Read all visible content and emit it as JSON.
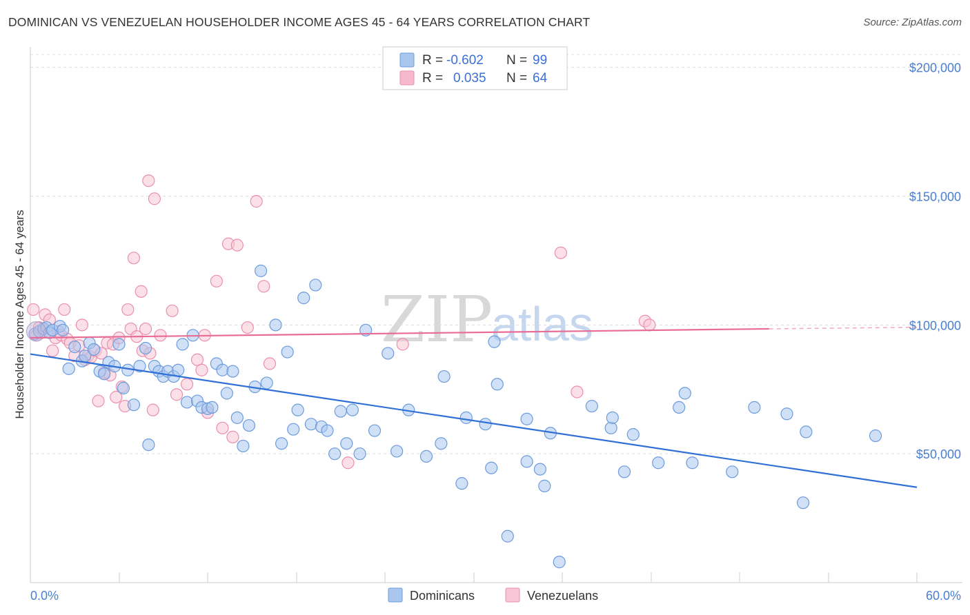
{
  "header": {
    "title": "DOMINICAN VS VENEZUELAN HOUSEHOLDER INCOME AGES 45 - 64 YEARS CORRELATION CHART",
    "source": "Source: ZipAtlas.com"
  },
  "watermark": {
    "zip": "ZIP",
    "atlas": "atlas"
  },
  "legend": {
    "r_label": "R =",
    "n_label": "N =",
    "entries": [
      {
        "r": "-0.602",
        "n": "99",
        "color": "#a9c6ee"
      },
      {
        "r": "0.035",
        "n": "64",
        "color": "#f5b8cc"
      }
    ]
  },
  "colors": {
    "dominican_fill": "#a9c6ee",
    "dominican_stroke": "#6c9bdc",
    "dominican_line": "#2f6fd6",
    "venezuelan_fill": "#f8c6d6",
    "venezuelan_stroke": "#ea8fae",
    "venezuelan_line": "#e86c95",
    "tick_label": "#4a7fd0"
  },
  "chart_data": {
    "type": "scatter",
    "title": "DOMINICAN VS VENEZUELAN HOUSEHOLDER INCOME AGES 45 - 64 YEARS CORRELATION CHART",
    "xlabel": "",
    "ylabel": "Householder Income Ages 45 - 64 years",
    "xlim": [
      0,
      60
    ],
    "ylim": [
      0,
      205000
    ],
    "x_tick_labels": [
      "0.0%",
      "60.0%"
    ],
    "y_ticks": [
      50000,
      100000,
      150000,
      200000
    ],
    "y_tick_labels": [
      "$50,000",
      "$100,000",
      "$150,000",
      "$200,000"
    ],
    "grid": true,
    "legend_position": "top-center",
    "series": [
      {
        "name": "Dominicans",
        "r": -0.602,
        "n": 99,
        "trend": {
          "x": [
            0,
            60
          ],
          "y": [
            88700,
            37000
          ]
        },
        "points": [
          [
            0.3,
            96500
          ],
          [
            0.6,
            97500
          ],
          [
            0.9,
            98500
          ],
          [
            1.1,
            99000
          ],
          [
            1.3,
            97000
          ],
          [
            1.5,
            98000
          ],
          [
            2.0,
            99500
          ],
          [
            2.2,
            98000
          ],
          [
            2.6,
            83000
          ],
          [
            3.0,
            91500
          ],
          [
            3.5,
            86000
          ],
          [
            3.7,
            88000
          ],
          [
            4.0,
            93000
          ],
          [
            4.3,
            90500
          ],
          [
            4.7,
            82000
          ],
          [
            5.0,
            81000
          ],
          [
            5.3,
            85500
          ],
          [
            5.7,
            84000
          ],
          [
            6.0,
            92500
          ],
          [
            6.3,
            75500
          ],
          [
            6.6,
            82500
          ],
          [
            7.0,
            69000
          ],
          [
            7.4,
            84000
          ],
          [
            7.8,
            91000
          ],
          [
            8.0,
            53500
          ],
          [
            8.4,
            84000
          ],
          [
            8.7,
            82000
          ],
          [
            9.0,
            80000
          ],
          [
            9.3,
            82000
          ],
          [
            9.7,
            80000
          ],
          [
            10.0,
            82500
          ],
          [
            10.3,
            92500
          ],
          [
            10.6,
            70000
          ],
          [
            11.0,
            96000
          ],
          [
            11.3,
            70500
          ],
          [
            11.6,
            68000
          ],
          [
            12.0,
            67500
          ],
          [
            12.3,
            68000
          ],
          [
            12.6,
            85000
          ],
          [
            13.0,
            82500
          ],
          [
            13.3,
            73500
          ],
          [
            13.7,
            82000
          ],
          [
            14.0,
            64000
          ],
          [
            14.4,
            53000
          ],
          [
            14.8,
            61000
          ],
          [
            15.2,
            76000
          ],
          [
            15.6,
            121000
          ],
          [
            16.0,
            77500
          ],
          [
            16.6,
            100000
          ],
          [
            17.0,
            54000
          ],
          [
            17.4,
            89500
          ],
          [
            17.8,
            59500
          ],
          [
            18.1,
            67000
          ],
          [
            18.5,
            110500
          ],
          [
            19.0,
            61500
          ],
          [
            19.3,
            115500
          ],
          [
            19.7,
            60500
          ],
          [
            20.1,
            59000
          ],
          [
            20.6,
            50000
          ],
          [
            21.0,
            66500
          ],
          [
            21.4,
            54000
          ],
          [
            21.8,
            67000
          ],
          [
            22.3,
            50000
          ],
          [
            22.7,
            98000
          ],
          [
            23.3,
            59000
          ],
          [
            24.2,
            89000
          ],
          [
            24.8,
            51000
          ],
          [
            25.6,
            67000
          ],
          [
            26.8,
            49000
          ],
          [
            27.8,
            54000
          ],
          [
            28.0,
            80000
          ],
          [
            29.2,
            38500
          ],
          [
            29.5,
            64000
          ],
          [
            30.8,
            61500
          ],
          [
            31.2,
            44500
          ],
          [
            31.4,
            93500
          ],
          [
            31.6,
            77000
          ],
          [
            32.3,
            18000
          ],
          [
            33.6,
            47000
          ],
          [
            33.6,
            63500
          ],
          [
            34.5,
            44000
          ],
          [
            34.8,
            37500
          ],
          [
            35.2,
            58000
          ],
          [
            35.8,
            8000
          ],
          [
            38.0,
            68500
          ],
          [
            39.3,
            60000
          ],
          [
            39.4,
            64000
          ],
          [
            40.2,
            43000
          ],
          [
            40.8,
            57500
          ],
          [
            42.5,
            46500
          ],
          [
            43.9,
            68000
          ],
          [
            44.3,
            73500
          ],
          [
            44.8,
            46500
          ],
          [
            47.5,
            43000
          ],
          [
            49.0,
            68000
          ],
          [
            51.2,
            65500
          ],
          [
            52.3,
            31000
          ],
          [
            52.5,
            58500
          ],
          [
            57.2,
            57000
          ]
        ]
      },
      {
        "name": "Venezuelans",
        "r": 0.035,
        "n": 64,
        "trend": {
          "x": [
            0,
            50
          ],
          "y": [
            95000,
            98500
          ]
        },
        "trend_dashed": {
          "x": [
            50,
            60
          ],
          "y": [
            98500,
            99100
          ]
        },
        "points": [
          [
            0.2,
            106000
          ],
          [
            0.4,
            96000
          ],
          [
            0.6,
            99000
          ],
          [
            0.9,
            97500
          ],
          [
            1.0,
            104000
          ],
          [
            1.3,
            102000
          ],
          [
            1.5,
            90000
          ],
          [
            1.7,
            95000
          ],
          [
            1.9,
            97500
          ],
          [
            2.1,
            96000
          ],
          [
            2.3,
            106000
          ],
          [
            2.5,
            94500
          ],
          [
            2.7,
            93000
          ],
          [
            3.0,
            88000
          ],
          [
            3.3,
            92000
          ],
          [
            3.5,
            100000
          ],
          [
            3.7,
            86500
          ],
          [
            3.9,
            88000
          ],
          [
            4.1,
            87500
          ],
          [
            4.4,
            90000
          ],
          [
            4.6,
            70500
          ],
          [
            4.8,
            89000
          ],
          [
            5.0,
            81500
          ],
          [
            5.2,
            93000
          ],
          [
            5.4,
            80500
          ],
          [
            5.6,
            92500
          ],
          [
            5.8,
            72000
          ],
          [
            6.0,
            95000
          ],
          [
            6.2,
            76000
          ],
          [
            6.4,
            68500
          ],
          [
            6.6,
            106000
          ],
          [
            6.8,
            98500
          ],
          [
            7.0,
            126000
          ],
          [
            7.2,
            95500
          ],
          [
            7.5,
            113000
          ],
          [
            7.6,
            90000
          ],
          [
            7.8,
            98500
          ],
          [
            8.0,
            156000
          ],
          [
            8.1,
            89000
          ],
          [
            8.3,
            67000
          ],
          [
            8.4,
            149000
          ],
          [
            8.8,
            96000
          ],
          [
            9.6,
            105500
          ],
          [
            9.9,
            73000
          ],
          [
            10.6,
            77000
          ],
          [
            11.3,
            86500
          ],
          [
            11.6,
            82500
          ],
          [
            11.8,
            96000
          ],
          [
            12.0,
            66000
          ],
          [
            12.6,
            117000
          ],
          [
            13.0,
            60000
          ],
          [
            13.4,
            131500
          ],
          [
            13.7,
            56500
          ],
          [
            14.0,
            131000
          ],
          [
            14.7,
            99000
          ],
          [
            15.3,
            148000
          ],
          [
            15.8,
            115000
          ],
          [
            16.2,
            85000
          ],
          [
            21.5,
            46500
          ],
          [
            25.2,
            92500
          ],
          [
            35.9,
            128000
          ],
          [
            37.0,
            74000
          ],
          [
            41.6,
            101500
          ],
          [
            41.9,
            100000
          ]
        ]
      }
    ]
  }
}
